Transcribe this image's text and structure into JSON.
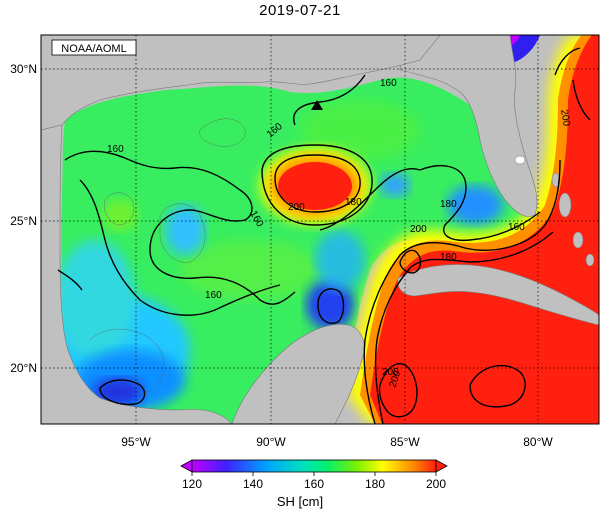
{
  "title": "2019-07-21",
  "source_label": "NOAA/AOML",
  "lat_labels": [
    "30°N",
    "25°N",
    "20°N"
  ],
  "lon_labels": [
    "95°W",
    "90°W",
    "85°W",
    "80°W"
  ],
  "contour_labels": [
    "160",
    "160",
    "160",
    "160",
    "180",
    "200",
    "180",
    "160",
    "200",
    "200",
    "180",
    "160",
    "200",
    "200"
  ],
  "colorbar": {
    "label": "SH [cm]",
    "ticks": [
      "120",
      "140",
      "160",
      "180",
      "200"
    ],
    "range": [
      120,
      200
    ],
    "colors": [
      "#c000ff",
      "#2020ff",
      "#00c0ff",
      "#00f070",
      "#a0f000",
      "#ffff00",
      "#ff9000",
      "#ff2010"
    ]
  },
  "land_color": "#c0c0c0",
  "marker": "station-triangle"
}
